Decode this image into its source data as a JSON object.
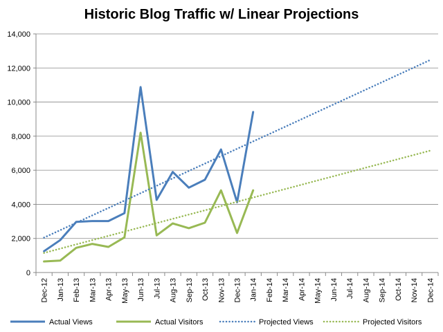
{
  "chart_data": {
    "type": "line",
    "title": "Historic Blog Traffic w/ Linear Projections",
    "xlabel": "",
    "ylabel": "",
    "ylim": [
      0,
      14000
    ],
    "yticks": [
      0,
      2000,
      4000,
      6000,
      8000,
      10000,
      12000,
      14000
    ],
    "ytick_labels": [
      "0",
      "2,000",
      "4,000",
      "6,000",
      "8,000",
      "10,000",
      "12,000",
      "14,000"
    ],
    "grid": "horizontal",
    "legend_position": "bottom",
    "categories": [
      "Dec-12",
      "Jan-13",
      "Feb-13",
      "Mar-13",
      "Apr-13",
      "May-13",
      "Jun-13",
      "Jul-13",
      "Aug-13",
      "Sep-13",
      "Oct-13",
      "Nov-13",
      "Dec-13",
      "Jan-14",
      "Feb-14",
      "Mar-14",
      "Apr-14",
      "May-14",
      "Jun-14",
      "Jul-14",
      "Aug-14",
      "Sep-14",
      "Oct-14",
      "Nov-14",
      "Dec-14"
    ],
    "series": [
      {
        "name": "Actual Views",
        "color": "#4a7ebb",
        "style": "solid",
        "values": [
          1250,
          1900,
          2970,
          3020,
          3020,
          3480,
          10880,
          4260,
          5900,
          4980,
          5440,
          7220,
          4120,
          9420,
          null,
          null,
          null,
          null,
          null,
          null,
          null,
          null,
          null,
          null,
          null
        ]
      },
      {
        "name": "Actual Visitors",
        "color": "#98b954",
        "style": "solid",
        "values": [
          650,
          700,
          1450,
          1680,
          1500,
          2060,
          8200,
          2180,
          2880,
          2600,
          2920,
          4820,
          2320,
          4820,
          null,
          null,
          null,
          null,
          null,
          null,
          null,
          null,
          null,
          null,
          null
        ]
      },
      {
        "name": "Projected Views",
        "color": "#4a7ebb",
        "style": "dotted",
        "values": [
          2050,
          2484,
          2918,
          3352,
          3786,
          4220,
          4654,
          5088,
          5522,
          5956,
          6390,
          6824,
          7258,
          7692,
          8126,
          8560,
          8994,
          9428,
          9862,
          10296,
          10730,
          11164,
          11598,
          12032,
          12466
        ]
      },
      {
        "name": "Projected Visitors",
        "color": "#98b954",
        "style": "dotted",
        "values": [
          1150,
          1400,
          1650,
          1900,
          2150,
          2400,
          2650,
          2900,
          3150,
          3400,
          3650,
          3900,
          4150,
          4400,
          4650,
          4900,
          5150,
          5400,
          5650,
          5900,
          6150,
          6400,
          6650,
          6900,
          7150
        ]
      }
    ]
  }
}
